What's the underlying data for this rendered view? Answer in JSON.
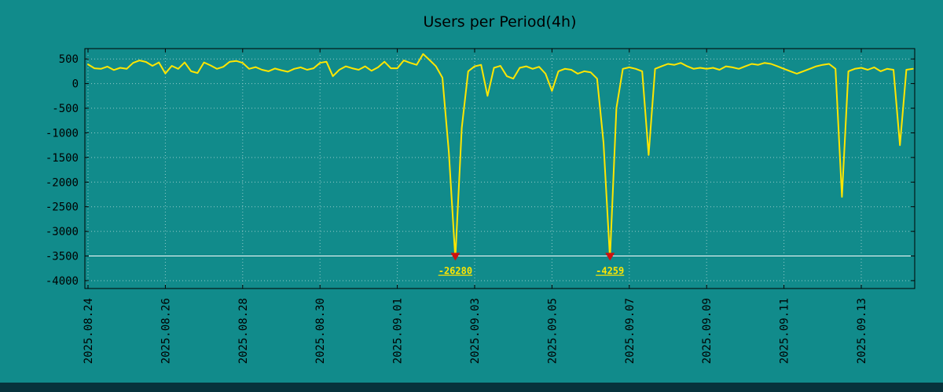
{
  "chart_data": {
    "type": "line",
    "title": "Users per Period(4h)",
    "series_name": "users",
    "x_start": "2025.08.24 00:00",
    "x_step_hours": 4,
    "values": [
      390,
      310,
      300,
      345,
      275,
      320,
      300,
      420,
      470,
      440,
      360,
      430,
      205,
      360,
      300,
      430,
      250,
      215,
      430,
      370,
      300,
      340,
      445,
      460,
      420,
      300,
      335,
      280,
      250,
      305,
      270,
      240,
      300,
      330,
      280,
      310,
      420,
      445,
      150,
      280,
      350,
      310,
      280,
      350,
      260,
      330,
      445,
      310,
      310,
      470,
      420,
      380,
      600,
      480,
      350,
      120,
      -1400,
      -26280,
      -900,
      250,
      350,
      380,
      -250,
      320,
      360,
      150,
      100,
      320,
      350,
      300,
      340,
      200,
      -150,
      250,
      300,
      280,
      200,
      250,
      230,
      100,
      -1200,
      -4259,
      -500,
      300,
      330,
      300,
      250,
      -1450,
      300,
      350,
      400,
      380,
      420,
      350,
      300,
      320,
      300,
      320,
      280,
      350,
      330,
      300,
      350,
      400,
      380,
      420,
      400,
      350,
      300,
      250,
      200,
      250,
      300,
      350,
      380,
      400,
      300,
      -2300,
      250,
      300,
      320,
      280,
      330,
      250,
      300,
      280,
      -1250,
      280,
      300
    ],
    "x_ticks": [
      {
        "index": 0,
        "label": "2025.08.24"
      },
      {
        "index": 12,
        "label": "2025.08.26"
      },
      {
        "index": 24,
        "label": "2025.08.28"
      },
      {
        "index": 36,
        "label": "2025.08.30"
      },
      {
        "index": 48,
        "label": "2025.09.01"
      },
      {
        "index": 60,
        "label": "2025.09.03"
      },
      {
        "index": 72,
        "label": "2025.09.05"
      },
      {
        "index": 84,
        "label": "2025.09.07"
      },
      {
        "index": 96,
        "label": "2025.09.09"
      },
      {
        "index": 108,
        "label": "2025.09.11"
      },
      {
        "index": 120,
        "label": "2025.09.13"
      }
    ],
    "y_ticks": [
      500,
      0,
      -500,
      -1000,
      -1500,
      -2000,
      -2500,
      -3000,
      -3500,
      -4000
    ],
    "ylim": [
      -4160,
      710
    ],
    "grid": "dotted",
    "legend": "none",
    "baseline": -3500,
    "clip_floor": -3550,
    "markers": [
      {
        "index": 57,
        "value": -26280,
        "label": "-26280"
      },
      {
        "index": 81,
        "value": -4259,
        "label": "-4259"
      }
    ],
    "colors": {
      "background": "#118b8b",
      "line": "#ffe600",
      "marker": "#cc1111",
      "grid": "#ffffff",
      "baseline": "#ffffff",
      "axis": "#000000",
      "text": "#000000",
      "min_label": "#ffe600",
      "bottom_bar": "#07333c"
    }
  }
}
